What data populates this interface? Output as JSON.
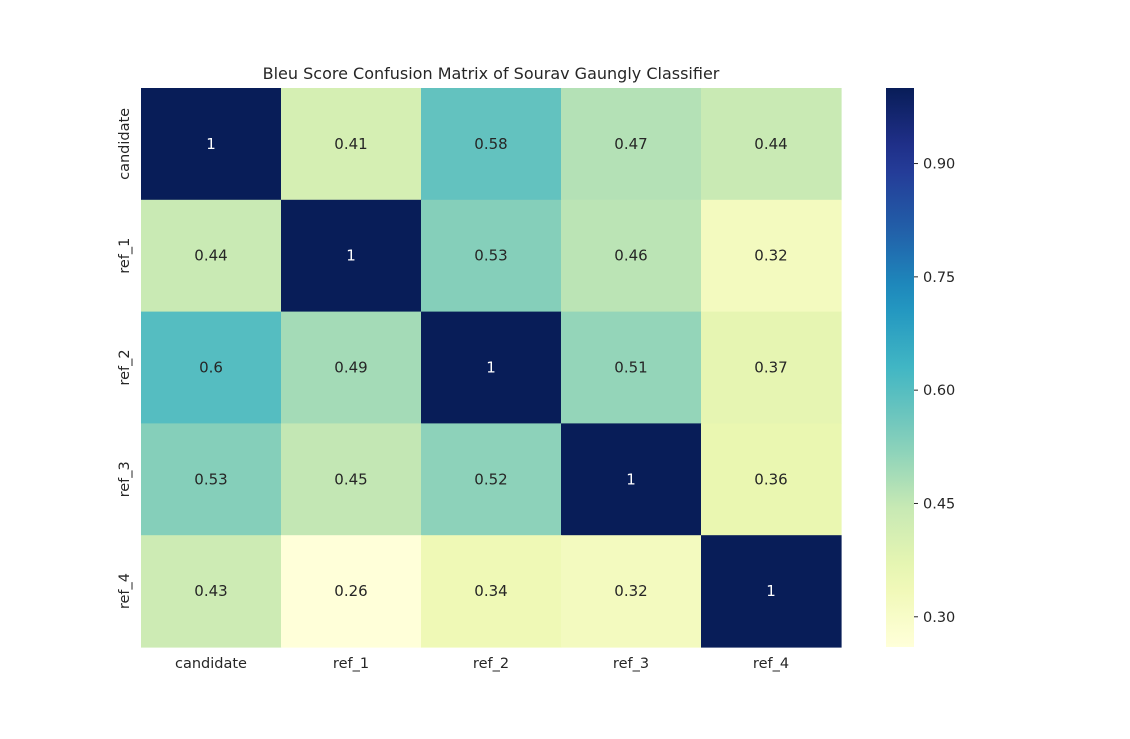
{
  "chart_data": {
    "type": "heatmap",
    "title": "Bleu Score Confusion Matrix of Sourav Gaungly Classifier",
    "rows": [
      "candidate",
      "ref_1",
      "ref_2",
      "ref_3",
      "ref_4"
    ],
    "columns": [
      "candidate",
      "ref_1",
      "ref_2",
      "ref_3",
      "ref_4"
    ],
    "values": [
      [
        1,
        0.41,
        0.58,
        0.47,
        0.44
      ],
      [
        0.44,
        1,
        0.53,
        0.46,
        0.32
      ],
      [
        0.6,
        0.49,
        1,
        0.51,
        0.37
      ],
      [
        0.53,
        0.45,
        0.52,
        1,
        0.36
      ],
      [
        0.43,
        0.26,
        0.34,
        0.32,
        1
      ]
    ],
    "cell_labels": [
      [
        "1",
        "0.41",
        "0.58",
        "0.47",
        "0.44"
      ],
      [
        "0.44",
        "1",
        "0.53",
        "0.46",
        "0.32"
      ],
      [
        "0.6",
        "0.49",
        "1",
        "0.51",
        "0.37"
      ],
      [
        "0.53",
        "0.45",
        "0.52",
        "1",
        "0.36"
      ],
      [
        "0.43",
        "0.26",
        "0.34",
        "0.32",
        "1"
      ]
    ],
    "colormap": "YlGnBu",
    "colorbar": {
      "range": [
        0.26,
        1
      ],
      "ticks": [
        0.3,
        0.45,
        0.6,
        0.75,
        0.9
      ],
      "tick_labels": [
        "0.30",
        "0.45",
        "0.60",
        "0.75",
        "0.90"
      ]
    },
    "grid": false,
    "legend": "colorbar-right"
  }
}
